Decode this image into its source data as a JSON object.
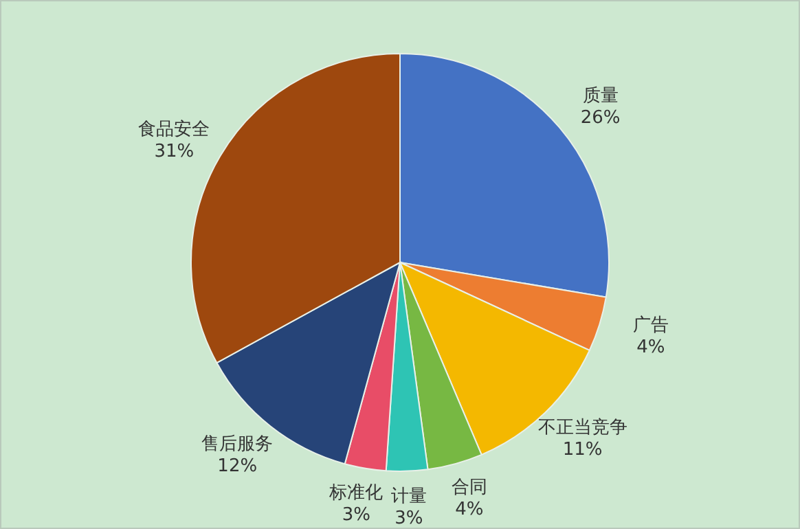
{
  "chart_data": {
    "type": "pie",
    "categories": [
      "质量",
      "广告",
      "不正当竞争",
      "合同",
      "计量",
      "标准化",
      "售后服务",
      "食品安全"
    ],
    "values": [
      26,
      4,
      11,
      4,
      3,
      3,
      12,
      31
    ],
    "value_labels": [
      "26%",
      "4%",
      "11%",
      "4%",
      "3%",
      "3%",
      "12%",
      "31%"
    ],
    "colors": [
      "#4472c4",
      "#ed7d31",
      "#f4b800",
      "#77b843",
      "#2ec4b4",
      "#e84d67",
      "#264478",
      "#9e480e"
    ],
    "legend": false
  }
}
